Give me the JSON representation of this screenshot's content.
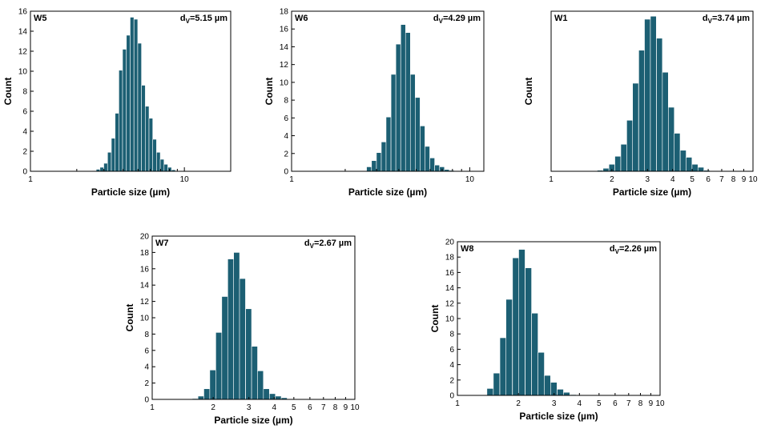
{
  "chart_data": [
    {
      "type": "bar",
      "panel": "W5",
      "annotation": {
        "prefix": "d",
        "subscript": "V",
        "suffix": "=5.15 µm"
      },
      "xlabel": "Particle size (µm)",
      "ylabel": "Count",
      "x_scale": "log",
      "xlim": [
        1,
        20
      ],
      "ylim": [
        0,
        16
      ],
      "x_ticks": [
        1,
        10
      ],
      "y_ticks": [
        0,
        2,
        4,
        6,
        8,
        10,
        12,
        14,
        16
      ],
      "bar_ratio": 1.058,
      "bars": [
        {
          "x": 2.6,
          "y": 0.05
        },
        {
          "x": 2.75,
          "y": 0.2
        },
        {
          "x": 2.91,
          "y": 0.4
        },
        {
          "x": 3.08,
          "y": 0.8
        },
        {
          "x": 3.26,
          "y": 1.9
        },
        {
          "x": 3.45,
          "y": 3.3
        },
        {
          "x": 3.65,
          "y": 5.8
        },
        {
          "x": 3.86,
          "y": 10.1
        },
        {
          "x": 4.08,
          "y": 12.2
        },
        {
          "x": 4.32,
          "y": 13.6
        },
        {
          "x": 4.57,
          "y": 15.4
        },
        {
          "x": 4.84,
          "y": 15.2
        },
        {
          "x": 5.12,
          "y": 12.8
        },
        {
          "x": 5.42,
          "y": 8.6
        },
        {
          "x": 5.73,
          "y": 6.5
        },
        {
          "x": 6.06,
          "y": 5.3
        },
        {
          "x": 6.41,
          "y": 3.2
        },
        {
          "x": 6.78,
          "y": 1.9
        },
        {
          "x": 7.17,
          "y": 1.2
        },
        {
          "x": 7.59,
          "y": 0.7
        },
        {
          "x": 8.03,
          "y": 0.4
        },
        {
          "x": 8.5,
          "y": 0.15
        }
      ]
    },
    {
      "type": "bar",
      "panel": "W6",
      "annotation": {
        "prefix": "d",
        "subscript": "V",
        "suffix": "=4.29 µm"
      },
      "xlabel": "Particle size (µm)",
      "ylabel": "Count",
      "x_scale": "log",
      "xlim": [
        1,
        12
      ],
      "ylim": [
        0,
        18
      ],
      "x_ticks": [
        1,
        10
      ],
      "y_ticks": [
        0,
        2,
        4,
        6,
        8,
        10,
        12,
        14,
        16,
        18
      ],
      "bar_ratio": 1.065,
      "bars": [
        {
          "x": 2.72,
          "y": 0.5
        },
        {
          "x": 2.9,
          "y": 1.2
        },
        {
          "x": 3.09,
          "y": 2.1
        },
        {
          "x": 3.29,
          "y": 3.3
        },
        {
          "x": 3.5,
          "y": 6.1
        },
        {
          "x": 3.73,
          "y": 10.9
        },
        {
          "x": 3.97,
          "y": 14.3
        },
        {
          "x": 4.23,
          "y": 16.5
        },
        {
          "x": 4.5,
          "y": 15.6
        },
        {
          "x": 4.79,
          "y": 10.9
        },
        {
          "x": 5.1,
          "y": 8.3
        },
        {
          "x": 5.43,
          "y": 5.1
        },
        {
          "x": 5.78,
          "y": 2.8
        },
        {
          "x": 6.16,
          "y": 1.5
        },
        {
          "x": 6.56,
          "y": 0.7
        },
        {
          "x": 6.99,
          "y": 0.5
        },
        {
          "x": 7.44,
          "y": 0.2
        },
        {
          "x": 7.92,
          "y": 0.1
        }
      ]
    },
    {
      "type": "bar",
      "panel": "W1",
      "annotation": {
        "prefix": "d",
        "subscript": "V",
        "suffix": "=3.74 µm"
      },
      "xlabel": "Particle size (µm)",
      "ylabel": "Count",
      "x_scale": "log",
      "xlim": [
        1,
        10
      ],
      "ylim": [
        0,
        16
      ],
      "x_ticks": [
        1,
        2,
        3,
        4,
        5,
        6,
        7,
        8,
        9,
        10
      ],
      "x_tick_labels": [
        "1",
        "2",
        "3",
        "4",
        "5",
        "6",
        "7",
        "8",
        "9",
        "10"
      ],
      "bar_ratio": 1.07,
      "bars": [
        {
          "x": 1.75,
          "y": 0.1
        },
        {
          "x": 1.87,
          "y": 0.3
        },
        {
          "x": 2.0,
          "y": 0.7
        },
        {
          "x": 2.14,
          "y": 1.5
        },
        {
          "x": 2.29,
          "y": 2.7
        },
        {
          "x": 2.45,
          "y": 5.1
        },
        {
          "x": 2.62,
          "y": 8.8
        },
        {
          "x": 2.81,
          "y": 12.1
        },
        {
          "x": 3.0,
          "y": 15.2
        },
        {
          "x": 3.21,
          "y": 15.5
        },
        {
          "x": 3.44,
          "y": 13.3
        },
        {
          "x": 3.68,
          "y": 9.9
        },
        {
          "x": 3.94,
          "y": 6.4
        },
        {
          "x": 4.21,
          "y": 3.8
        },
        {
          "x": 4.51,
          "y": 2.1
        },
        {
          "x": 4.82,
          "y": 1.4
        },
        {
          "x": 5.16,
          "y": 0.7
        },
        {
          "x": 5.52,
          "y": 0.4
        },
        {
          "x": 5.91,
          "y": 0.1
        }
      ]
    },
    {
      "type": "bar",
      "panel": "W7",
      "annotation": {
        "prefix": "d",
        "subscript": "V",
        "suffix": "=2.67 µm"
      },
      "xlabel": "Particle size (µm)",
      "ylabel": "Count",
      "x_scale": "log",
      "xlim": [
        1,
        10
      ],
      "ylim": [
        0,
        20
      ],
      "x_ticks": [
        1,
        2,
        3,
        4,
        5,
        6,
        7,
        8,
        9,
        10
      ],
      "x_tick_labels": [
        "1",
        "2",
        "3",
        "4",
        "5",
        "6",
        "7",
        "8",
        "9",
        "10"
      ],
      "y_ticks": [
        0,
        2,
        4,
        6,
        8,
        10,
        12,
        14,
        16,
        18,
        20
      ],
      "bar_ratio": 1.07,
      "bars": [
        {
          "x": 1.63,
          "y": 0.1
        },
        {
          "x": 1.74,
          "y": 0.4
        },
        {
          "x": 1.86,
          "y": 1.3
        },
        {
          "x": 1.99,
          "y": 3.6
        },
        {
          "x": 2.13,
          "y": 8.2
        },
        {
          "x": 2.28,
          "y": 12.6
        },
        {
          "x": 2.44,
          "y": 17.2
        },
        {
          "x": 2.61,
          "y": 18.0
        },
        {
          "x": 2.79,
          "y": 14.8
        },
        {
          "x": 2.99,
          "y": 11.1
        },
        {
          "x": 3.2,
          "y": 6.5
        },
        {
          "x": 3.42,
          "y": 3.5
        },
        {
          "x": 3.66,
          "y": 1.3
        },
        {
          "x": 3.92,
          "y": 0.7
        },
        {
          "x": 4.19,
          "y": 0.4
        },
        {
          "x": 4.48,
          "y": 0.2
        }
      ]
    },
    {
      "type": "bar",
      "panel": "W8",
      "annotation": {
        "prefix": "d",
        "subscript": "V",
        "suffix": "=2.26 µm"
      },
      "xlabel": "Particle size (µm)",
      "ylabel": "Count",
      "x_scale": "log",
      "xlim": [
        1,
        10
      ],
      "ylim": [
        0,
        20
      ],
      "x_ticks": [
        1,
        2,
        3,
        4,
        5,
        6,
        7,
        8,
        9,
        10
      ],
      "x_tick_labels": [
        "1",
        "2",
        "3",
        "4",
        "5",
        "6",
        "7",
        "8",
        "9",
        "10"
      ],
      "y_ticks": [
        0,
        2,
        4,
        6,
        8,
        10,
        12,
        14,
        16,
        18,
        20
      ],
      "bar_ratio": 1.075,
      "bars": [
        {
          "x": 1.45,
          "y": 0.9
        },
        {
          "x": 1.56,
          "y": 2.9
        },
        {
          "x": 1.68,
          "y": 7.5
        },
        {
          "x": 1.8,
          "y": 12.5
        },
        {
          "x": 1.94,
          "y": 17.9
        },
        {
          "x": 2.08,
          "y": 19.0
        },
        {
          "x": 2.24,
          "y": 16.6
        },
        {
          "x": 2.41,
          "y": 10.7
        },
        {
          "x": 2.59,
          "y": 5.6
        },
        {
          "x": 2.78,
          "y": 2.6
        },
        {
          "x": 2.99,
          "y": 1.7
        },
        {
          "x": 3.22,
          "y": 0.8
        },
        {
          "x": 3.46,
          "y": 0.4
        },
        {
          "x": 3.72,
          "y": 0.1
        }
      ]
    }
  ]
}
